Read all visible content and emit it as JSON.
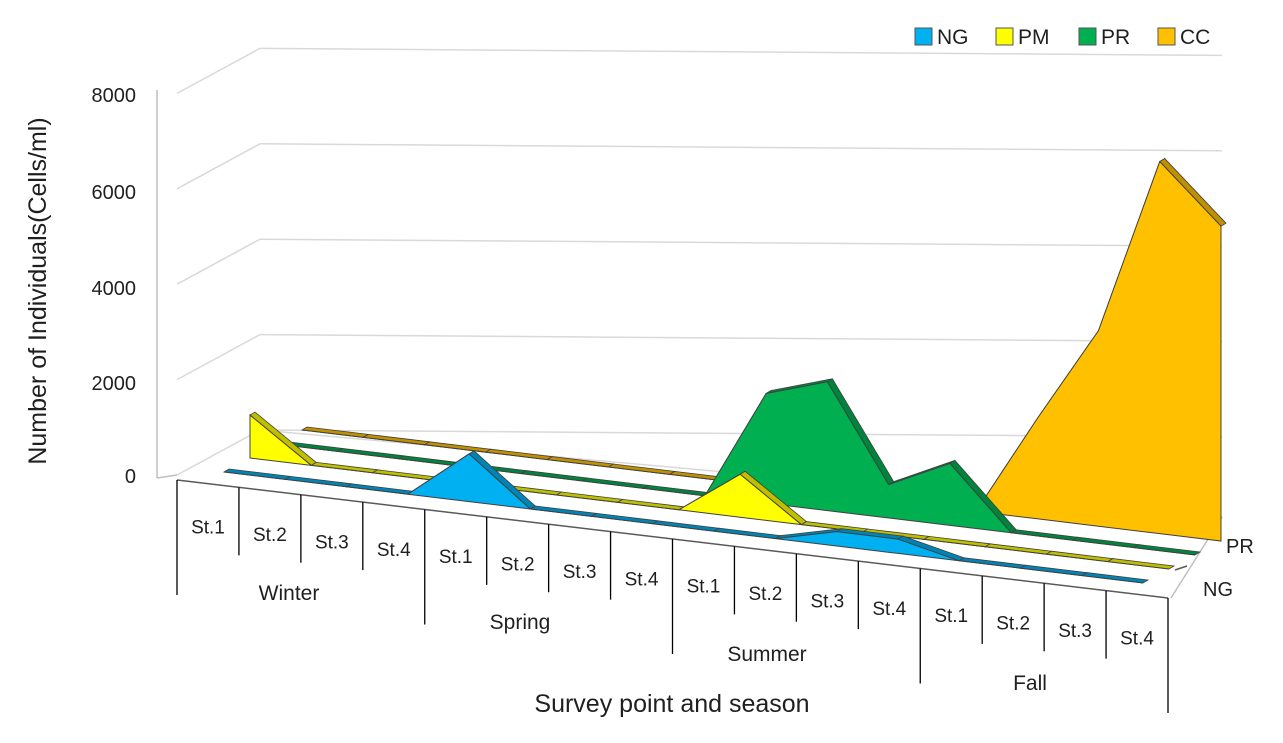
{
  "chart_data": {
    "type": "area",
    "subtype": "3d-area",
    "title": "",
    "xlabel": "Survey point and season",
    "ylabel": "Number of Individuals(Cells/ml)",
    "ylim": [
      0,
      8000
    ],
    "yticks": [
      "0",
      "2000",
      "4000",
      "6000",
      "8000"
    ],
    "groups": [
      "Winter",
      "Spring",
      "Summer",
      "Fall"
    ],
    "categories": [
      "St.1",
      "St.2",
      "St.3",
      "St.4",
      "St.1",
      "St.2",
      "St.3",
      "St.4",
      "St.1",
      "St.2",
      "St.3",
      "St.4",
      "St.1",
      "St.2",
      "St.3",
      "St.4"
    ],
    "depth_labels": [
      "PR",
      "NG"
    ],
    "legend": [
      "NG",
      "PM",
      "PR",
      "CC"
    ],
    "series": [
      {
        "name": "NG",
        "color": "#00B0F0",
        "values": [
          0,
          0,
          0,
          0,
          1000,
          0,
          0,
          0,
          0,
          0,
          300,
          300,
          0,
          0,
          0,
          0
        ]
      },
      {
        "name": "PM",
        "color": "#FFFF00",
        "values": [
          900,
          0,
          0,
          0,
          0,
          0,
          0,
          0,
          900,
          0,
          0,
          0,
          0,
          0,
          0,
          0
        ]
      },
      {
        "name": "PR",
        "color": "#00B050",
        "values": [
          0,
          0,
          0,
          0,
          0,
          0,
          0,
          0,
          2300,
          2700,
          700,
          1300,
          0,
          0,
          0,
          0
        ]
      },
      {
        "name": "CC",
        "color": "#FFC000",
        "values": [
          0,
          0,
          0,
          0,
          0,
          0,
          0,
          0,
          0,
          0,
          0,
          0,
          2100,
          4100,
          7800,
          6600
        ]
      }
    ]
  }
}
